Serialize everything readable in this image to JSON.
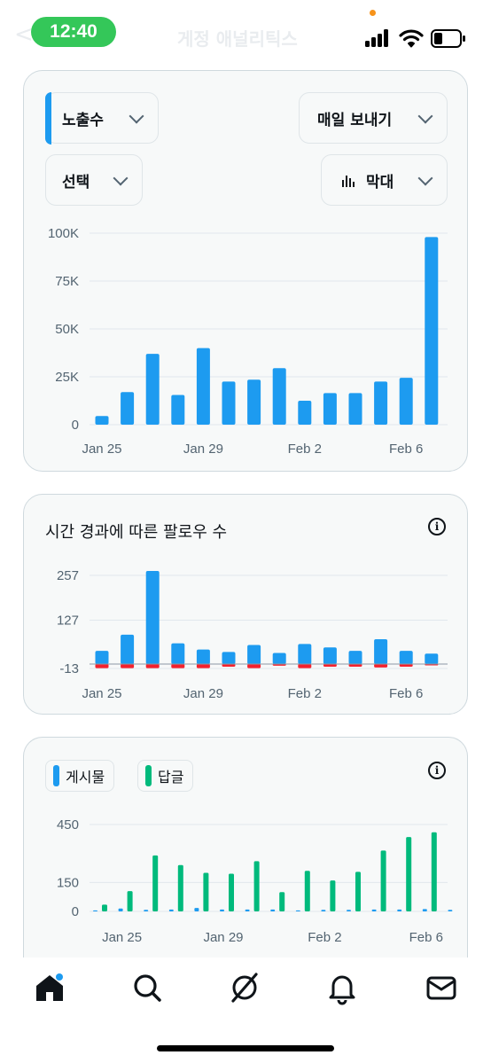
{
  "status_bar": {
    "time": "12:40",
    "faded_title": "게정 애널리틱스",
    "faded_back": "<"
  },
  "card1": {
    "metric_dropdown": "노출수",
    "export_dropdown": "매일 보내기",
    "select_dropdown": "선택",
    "chart_type_dropdown": "막대",
    "chart_type_icon": "bar-chart-icon"
  },
  "card2": {
    "title": "시간 경과에 따른 팔로우 수",
    "info_icon": "i"
  },
  "card3": {
    "legend": [
      {
        "label": "게시물",
        "color": "#1d9bf0"
      },
      {
        "label": "답글",
        "color": "#00ba7c"
      }
    ],
    "info_icon": "i"
  },
  "chart_data": [
    {
      "type": "bar",
      "categories": [
        "Jan 25",
        "Jan 26",
        "Jan 27",
        "Jan 28",
        "Jan 29",
        "Jan 30",
        "Jan 31",
        "Feb 1",
        "Feb 2",
        "Feb 3",
        "Feb 4",
        "Feb 5",
        "Feb 6",
        "Feb 7"
      ],
      "x_tick_labels": [
        "Jan 25",
        "Jan 29",
        "Feb 2",
        "Feb 6"
      ],
      "y_tick_labels": [
        "100K",
        "75K",
        "50K",
        "25K",
        "0"
      ],
      "y_ticks": [
        100000,
        75000,
        50000,
        25000,
        0
      ],
      "ylim": [
        0,
        100000
      ],
      "series": [
        {
          "values": [
            4500,
            17000,
            37000,
            15500,
            40000,
            22500,
            23500,
            29500,
            12500,
            16500,
            16500,
            22500,
            24500,
            98000
          ],
          "color": "#1d9bf0"
        }
      ],
      "grid": true
    },
    {
      "type": "bar",
      "categories": [
        "Jan 25",
        "Jan 26",
        "Jan 27",
        "Jan 28",
        "Jan 29",
        "Jan 30",
        "Jan 31",
        "Feb 1",
        "Feb 2",
        "Feb 3",
        "Feb 4",
        "Feb 5",
        "Feb 6",
        "Feb 7"
      ],
      "x_tick_labels": [
        "Jan 25",
        "Jan 29",
        "Feb 2",
        "Feb 6"
      ],
      "y_tick_labels": [
        "257",
        "127",
        "-13"
      ],
      "y_ticks": [
        257,
        127,
        -13
      ],
      "ylim": [
        -13,
        257
      ],
      "series": [
        {
          "values": [
            38,
            85,
            270,
            60,
            42,
            35,
            55,
            32,
            58,
            48,
            38,
            72,
            38,
            30
          ],
          "color": "#1d9bf0"
        },
        {
          "values": [
            -12,
            -12,
            -12,
            -12,
            -12,
            -8,
            -12,
            -5,
            -12,
            -8,
            -8,
            -10,
            -8,
            -3
          ],
          "color": "#f4212e"
        }
      ],
      "grid": true
    },
    {
      "type": "bar",
      "categories": [
        "Jan 24",
        "Jan 25",
        "Jan 26",
        "Jan 27",
        "Jan 28",
        "Jan 29",
        "Jan 30",
        "Jan 31",
        "Feb 1",
        "Feb 2",
        "Feb 3",
        "Feb 4",
        "Feb 5",
        "Feb 6",
        "Feb 7"
      ],
      "x_tick_labels": [
        "Jan 25",
        "Jan 29",
        "Feb 2",
        "Feb 6"
      ],
      "y_tick_labels": [
        "450",
        "150",
        "0"
      ],
      "y_ticks": [
        450,
        150,
        0
      ],
      "ylim": [
        0,
        450
      ],
      "series": [
        {
          "name": "게시물",
          "values": [
            5,
            15,
            8,
            10,
            18,
            10,
            10,
            10,
            5,
            8,
            8,
            10,
            10,
            12,
            8
          ],
          "color": "#1d9bf0"
        },
        {
          "name": "답글",
          "values": [
            35,
            105,
            290,
            240,
            200,
            195,
            260,
            100,
            210,
            160,
            205,
            315,
            385,
            410,
            0
          ],
          "color": "#00ba7c"
        }
      ],
      "grid": true
    }
  ]
}
